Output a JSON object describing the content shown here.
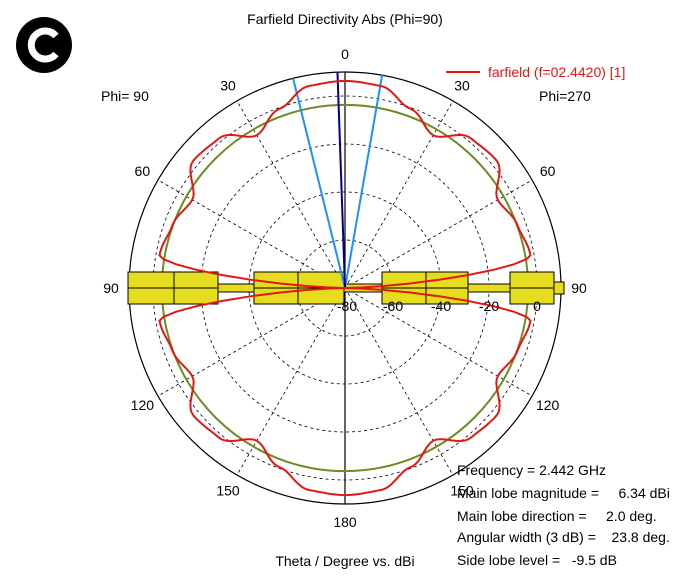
{
  "chart_data": {
    "type": "polar",
    "title": "Farfield Directivity Abs (Phi=90)",
    "xlabel": "Theta / Degree vs. dBi",
    "phi_left_label": "Phi= 90",
    "phi_right_label": "Phi=270",
    "angle_labels": [
      "0",
      "30",
      "60",
      "90",
      "120",
      "150",
      "180",
      "150",
      "120",
      "90",
      "60",
      "30"
    ],
    "radial_ticks": [
      "-80",
      "-60",
      "-40",
      "-20",
      "0"
    ],
    "rlim": [
      -80,
      10
    ],
    "series": [
      {
        "name": "farfield (f=02.4420) [1]",
        "color": "#e01818",
        "theta_deg": [
          0,
          10,
          20,
          30,
          40,
          50,
          60,
          70,
          80,
          90,
          100,
          110,
          120,
          130,
          140,
          150,
          160,
          170,
          180
        ],
        "right_half_dbi": [
          6.3,
          5.5,
          -0.5,
          -6.5,
          1.5,
          2.5,
          -6.5,
          -3.5,
          -1.5,
          -80,
          -1.5,
          -3.5,
          -6.5,
          2.5,
          1.5,
          -6.5,
          -0.5,
          5.5,
          6.3
        ],
        "left_half_dbi": [
          6.3,
          5.5,
          -0.5,
          -6.5,
          1.5,
          2.5,
          -6.5,
          -3.5,
          -1.5,
          -80,
          -1.5,
          -3.5,
          -6.5,
          2.5,
          1.5,
          -6.5,
          -0.5,
          5.5,
          6.3
        ]
      }
    ],
    "main_lobe_direction_deg": 2.0,
    "beamwidth_deg": 23.8,
    "side_lobe_level_db": -9.5
  },
  "legend_label": "farfield (f=02.4420) [1]",
  "info": {
    "frequency": "Frequency = 2.442 GHz",
    "main_lobe_magnitude": "Main lobe magnitude =     6.34 dBi",
    "main_lobe_direction": "Main lobe direction =     2.0 deg.",
    "angular_width": "Angular width (3 dB) =    23.8 deg.",
    "side_lobe_level": "Side lobe level =   -9.5 dB"
  },
  "colors": {
    "curve": "#e01818",
    "main_lobe_line": "#00008b",
    "beamwidth_lines": "#1e90ff",
    "side_lobe_circle": "#6b8e23",
    "grid": "#000000",
    "antenna_fill": "#e6dc1e"
  },
  "logo": "c-copyright-logo"
}
